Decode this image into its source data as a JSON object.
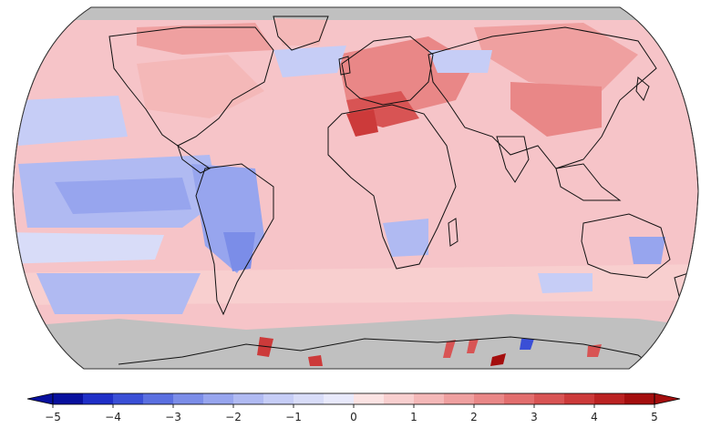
{
  "map": {
    "projection": "robinson",
    "colorbar": {
      "min": -5,
      "max": 5,
      "step": 0.5,
      "extend": "both",
      "ticks": [
        {
          "value": -5,
          "label": "−5"
        },
        {
          "value": -4,
          "label": "−4"
        },
        {
          "value": -3,
          "label": "−3"
        },
        {
          "value": -2,
          "label": "−2"
        },
        {
          "value": -1,
          "label": "−1"
        },
        {
          "value": 0,
          "label": "0"
        },
        {
          "value": 1,
          "label": "1"
        },
        {
          "value": 2,
          "label": "2"
        },
        {
          "value": 3,
          "label": "3"
        },
        {
          "value": 4,
          "label": "4"
        },
        {
          "value": 5,
          "label": "5"
        }
      ],
      "colors": [
        "#08109e",
        "#1f2fc7",
        "#3a4fd6",
        "#5a6fe0",
        "#7b8de8",
        "#97a5ee",
        "#b0baf2",
        "#c6cdf6",
        "#d8dcf8",
        "#e8e9fb",
        "#fbe3e3",
        "#f8cfcf",
        "#f4b8b8",
        "#efa0a0",
        "#e98787",
        "#e26e6e",
        "#d85454",
        "#cc3a3a",
        "#bb2222",
        "#a40e0e"
      ]
    },
    "colors": {
      "no_data": "#c0c0c0",
      "ocean_base": "#f6c4c8",
      "coastline": "#111111"
    }
  }
}
